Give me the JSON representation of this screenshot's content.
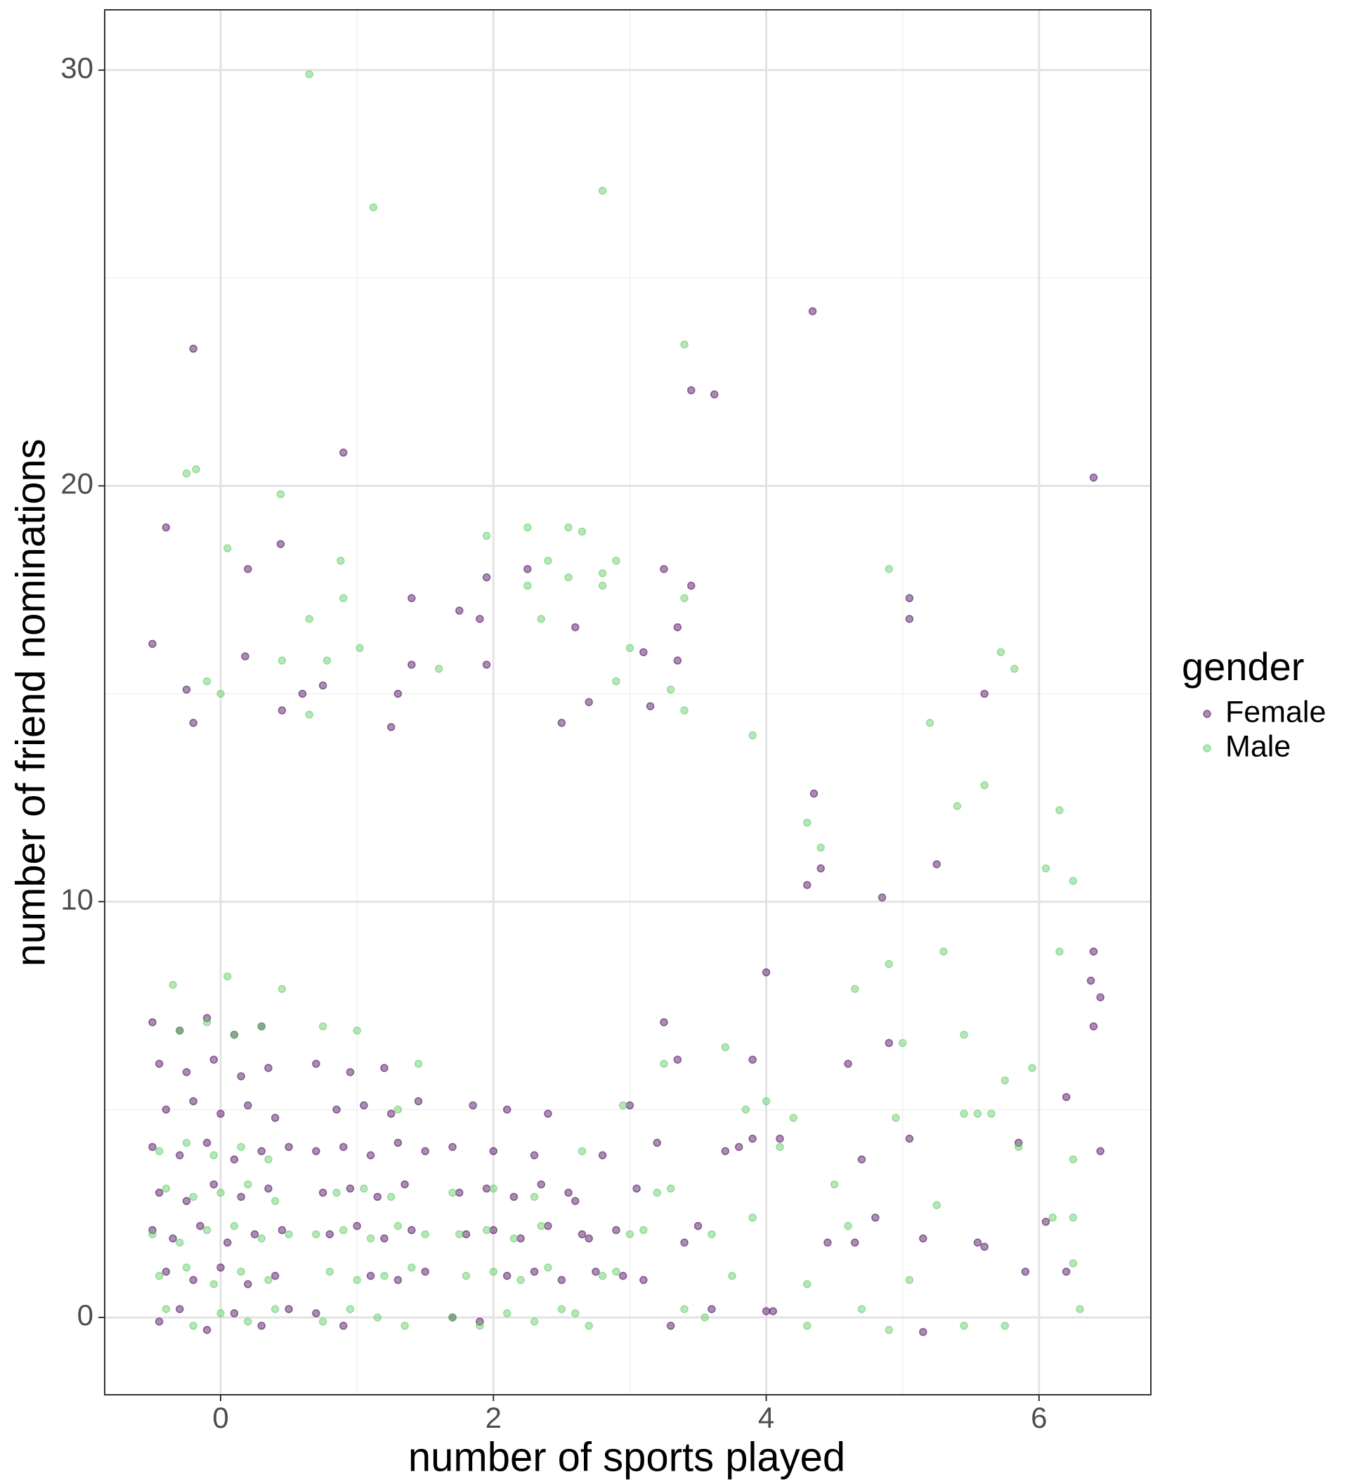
{
  "chart_data": {
    "type": "scatter",
    "x_label": "number of sports played",
    "y_label": "number of friend nominations",
    "xlim": [
      -0.85,
      6.82
    ],
    "ylim": [
      -1.86,
      31.45
    ],
    "xticks": [
      0,
      2,
      4,
      6
    ],
    "yticks": [
      0,
      10,
      20,
      30
    ],
    "xminor": [
      1,
      3,
      5
    ],
    "yminor": [
      5,
      15,
      25
    ],
    "grid": true,
    "legend_title": "gender",
    "series": [
      {
        "name": "Female",
        "color": "#440154",
        "x": [
          -0.2,
          4.34,
          3.45,
          3.62,
          0.9,
          6.4,
          -0.4,
          0.44,
          0.2,
          1.4,
          5.05,
          5.05,
          -0.5,
          1.95,
          2.25,
          3.25,
          3.45,
          3.35,
          2.6,
          1.75,
          1.9,
          0.18,
          1.4,
          3.35,
          3.1,
          1.95,
          0.6,
          0.75,
          -0.25,
          1.3,
          5.6,
          2.7,
          3.15,
          0.45,
          1.25,
          2.5,
          -0.2,
          4.35,
          5.25,
          4.4,
          4.3,
          4.85,
          6.4,
          6.38,
          6.45,
          6.4,
          6.2,
          6.45,
          5.85,
          4.1,
          3.9,
          3.9,
          4.0,
          4.6,
          4.7,
          5.05,
          5.15,
          5.55,
          5.6,
          5.9,
          6.05,
          6.2,
          5.15,
          4.0,
          4.05,
          4.45,
          4.65,
          4.8,
          4.9,
          -0.45,
          -0.3,
          -0.1,
          0.1,
          0.3,
          0.5,
          -0.4,
          -0.2,
          0.0,
          0.2,
          0.4,
          -0.5,
          -0.35,
          -0.15,
          0.05,
          0.25,
          0.45,
          -0.45,
          -0.25,
          -0.05,
          0.15,
          0.35,
          -0.5,
          -0.3,
          -0.1,
          0.1,
          0.3,
          0.5,
          -0.4,
          -0.2,
          0.0,
          0.2,
          0.4,
          -0.45,
          -0.25,
          -0.05,
          0.15,
          0.35,
          -0.5,
          -0.3,
          -0.1,
          0.1,
          0.3,
          0.7,
          0.9,
          1.1,
          1.3,
          1.5,
          0.8,
          1.0,
          1.2,
          1.4,
          0.75,
          0.95,
          1.15,
          1.35,
          0.7,
          0.9,
          1.1,
          1.3,
          1.5,
          0.85,
          1.05,
          1.25,
          1.45,
          0.7,
          0.95,
          1.2,
          1.7,
          1.9,
          2.1,
          2.3,
          2.5,
          1.8,
          2.0,
          2.2,
          2.4,
          1.75,
          1.95,
          2.15,
          2.35,
          2.55,
          1.7,
          2.0,
          2.3,
          1.85,
          2.1,
          2.4,
          2.7,
          2.9,
          3.1,
          3.3,
          2.6,
          2.8,
          3.0,
          3.2,
          2.75,
          3.05,
          3.35,
          2.65,
          2.95,
          3.25,
          3.5,
          3.7,
          3.6,
          3.4,
          3.8
        ],
        "y": [
          23.3,
          24.2,
          22.3,
          22.2,
          20.8,
          20.2,
          19,
          18.6,
          18,
          17.3,
          17.3,
          16.8,
          16.2,
          17.8,
          18,
          18,
          17.6,
          16.6,
          16.6,
          17,
          16.8,
          15.9,
          15.7,
          15.8,
          16,
          15.7,
          15,
          15.2,
          15.1,
          15,
          15,
          14.8,
          14.7,
          14.6,
          14.2,
          14.3,
          14.3,
          12.6,
          10.9,
          10.8,
          10.4,
          10.1,
          8.8,
          8.1,
          7.7,
          7,
          5.3,
          4,
          4.2,
          4.3,
          4.3,
          6.2,
          8.3,
          6.1,
          3.8,
          4.3,
          1.9,
          1.8,
          1.7,
          1.1,
          2.3,
          1.1,
          -0.35,
          0.15,
          0.15,
          1.8,
          1.8,
          2.4,
          6.6,
          -0.1,
          0.2,
          -0.3,
          0.1,
          -0.2,
          0.2,
          1.1,
          0.9,
          1.2,
          0.8,
          1.0,
          2.1,
          1.9,
          2.2,
          1.8,
          2.0,
          2.1,
          3.0,
          2.8,
          3.2,
          2.9,
          3.1,
          4.1,
          3.9,
          4.2,
          3.8,
          4.0,
          4.1,
          5.0,
          5.2,
          4.9,
          5.1,
          4.8,
          6.1,
          5.9,
          6.2,
          5.8,
          6.0,
          7.1,
          6.9,
          7.2,
          6.8,
          7.0,
          0.1,
          -0.2,
          1.0,
          0.9,
          1.1,
          2.0,
          2.2,
          1.9,
          2.1,
          3.0,
          3.1,
          2.9,
          3.2,
          4.0,
          4.1,
          3.9,
          4.2,
          4.0,
          5.0,
          5.1,
          4.9,
          5.2,
          6.1,
          5.9,
          6.0,
          0.0,
          -0.1,
          1.0,
          1.1,
          0.9,
          2.0,
          2.1,
          1.9,
          2.2,
          3.0,
          3.1,
          2.9,
          3.2,
          3.0,
          4.1,
          4.0,
          3.9,
          5.1,
          5.0,
          4.9,
          1.9,
          2.1,
          0.9,
          -0.2,
          2.8,
          3.9,
          5.1,
          4.2,
          1.1,
          3.1,
          6.2,
          2.0,
          1.0,
          7.1,
          2.2,
          4.0,
          0.2,
          1.8,
          4.1
        ]
      },
      {
        "name": "Male",
        "color": "#5ec962",
        "x": [
          0.65,
          2.8,
          1.12,
          3.4,
          -0.25,
          -0.18,
          0.44,
          2.25,
          2.55,
          2.65,
          1.95,
          0.05,
          0.88,
          2.4,
          2.9,
          2.8,
          2.55,
          2.25,
          2.8,
          4.9,
          0.9,
          3.4,
          0.65,
          2.35,
          1.02,
          3.0,
          5.72,
          5.82,
          0.78,
          0.45,
          1.6,
          2.9,
          0.0,
          -0.1,
          3.3,
          5.2,
          3.4,
          0.65,
          3.9,
          5.6,
          5.4,
          6.15,
          4.3,
          4.4,
          6.05,
          6.25,
          4.9,
          6.15,
          5.3,
          4.65,
          5.45,
          5.0,
          5.95,
          5.75,
          5.55,
          4.95,
          5.45,
          5.65,
          6.25,
          5.25,
          5.85,
          6.1,
          6.25,
          5.05,
          5.75,
          5.45,
          4.9,
          6.3,
          6.25,
          4.7,
          4.3,
          -0.4,
          -0.2,
          0.0,
          0.2,
          0.4,
          -0.45,
          -0.25,
          -0.05,
          0.15,
          0.35,
          -0.5,
          -0.3,
          -0.1,
          0.1,
          0.3,
          0.5,
          -0.4,
          -0.2,
          0.0,
          0.2,
          0.4,
          -0.45,
          -0.25,
          -0.05,
          0.15,
          0.35,
          -0.3,
          -0.1,
          0.1,
          0.3,
          -0.35,
          0.05,
          0.45,
          0.75,
          0.95,
          1.15,
          1.35,
          0.8,
          1.0,
          1.2,
          1.4,
          0.7,
          0.9,
          1.1,
          1.3,
          1.5,
          0.85,
          1.05,
          1.25,
          1.45,
          0.75,
          1.0,
          1.3,
          1.7,
          1.9,
          2.1,
          2.3,
          2.5,
          1.8,
          2.0,
          2.2,
          2.4,
          1.75,
          1.95,
          2.15,
          2.35,
          1.7,
          2.0,
          2.3,
          2.6,
          2.8,
          3.0,
          3.2,
          3.4,
          2.7,
          2.9,
          3.1,
          3.3,
          2.65,
          2.95,
          3.25,
          3.55,
          3.75,
          3.6,
          3.85,
          4.1,
          4.3,
          4.5,
          4.2,
          4.0,
          4.6,
          3.7,
          3.9
        ],
        "y": [
          29.9,
          27.1,
          26.7,
          23.4,
          20.3,
          20.4,
          19.8,
          19,
          19,
          18.9,
          18.8,
          18.5,
          18.2,
          18.2,
          18.2,
          17.9,
          17.8,
          17.6,
          17.6,
          18,
          17.3,
          17.3,
          16.8,
          16.8,
          16.1,
          16.1,
          16,
          15.6,
          15.8,
          15.8,
          15.6,
          15.3,
          15,
          15.3,
          15.1,
          14.3,
          14.6,
          14.5,
          14,
          12.8,
          12.3,
          12.2,
          11.9,
          11.3,
          10.8,
          10.5,
          8.5,
          8.8,
          8.8,
          7.9,
          6.8,
          6.6,
          6,
          5.7,
          4.9,
          4.8,
          4.9,
          4.9,
          3.8,
          2.7,
          4.1,
          2.4,
          2.4,
          0.9,
          -0.2,
          -0.2,
          -0.3,
          0.2,
          1.3,
          0.2,
          -0.2,
          0.2,
          -0.2,
          0.1,
          -0.1,
          0.2,
          1.0,
          1.2,
          0.8,
          1.1,
          0.9,
          2.0,
          1.8,
          2.1,
          2.2,
          1.9,
          2.0,
          3.1,
          2.9,
          3.0,
          3.2,
          2.8,
          4.0,
          4.2,
          3.9,
          4.1,
          3.8,
          6.9,
          7.1,
          6.8,
          7.0,
          8.0,
          8.2,
          7.9,
          -0.1,
          0.2,
          0.0,
          -0.2,
          1.1,
          0.9,
          1.0,
          1.2,
          2.0,
          2.1,
          1.9,
          2.2,
          2.0,
          3.0,
          3.1,
          2.9,
          6.1,
          7.0,
          6.9,
          5.0,
          0.0,
          -0.2,
          0.1,
          -0.1,
          0.2,
          1.0,
          1.1,
          0.9,
          1.2,
          2.0,
          2.1,
          1.9,
          2.2,
          3.0,
          3.1,
          2.9,
          0.1,
          1.0,
          2.0,
          3.0,
          0.2,
          -0.2,
          1.1,
          2.1,
          3.1,
          4.0,
          5.1,
          6.1,
          0.0,
          1.0,
          2.0,
          5.0,
          4.1,
          0.8,
          3.2,
          4.8,
          5.2,
          2.2,
          6.5,
          2.4
        ]
      }
    ]
  }
}
